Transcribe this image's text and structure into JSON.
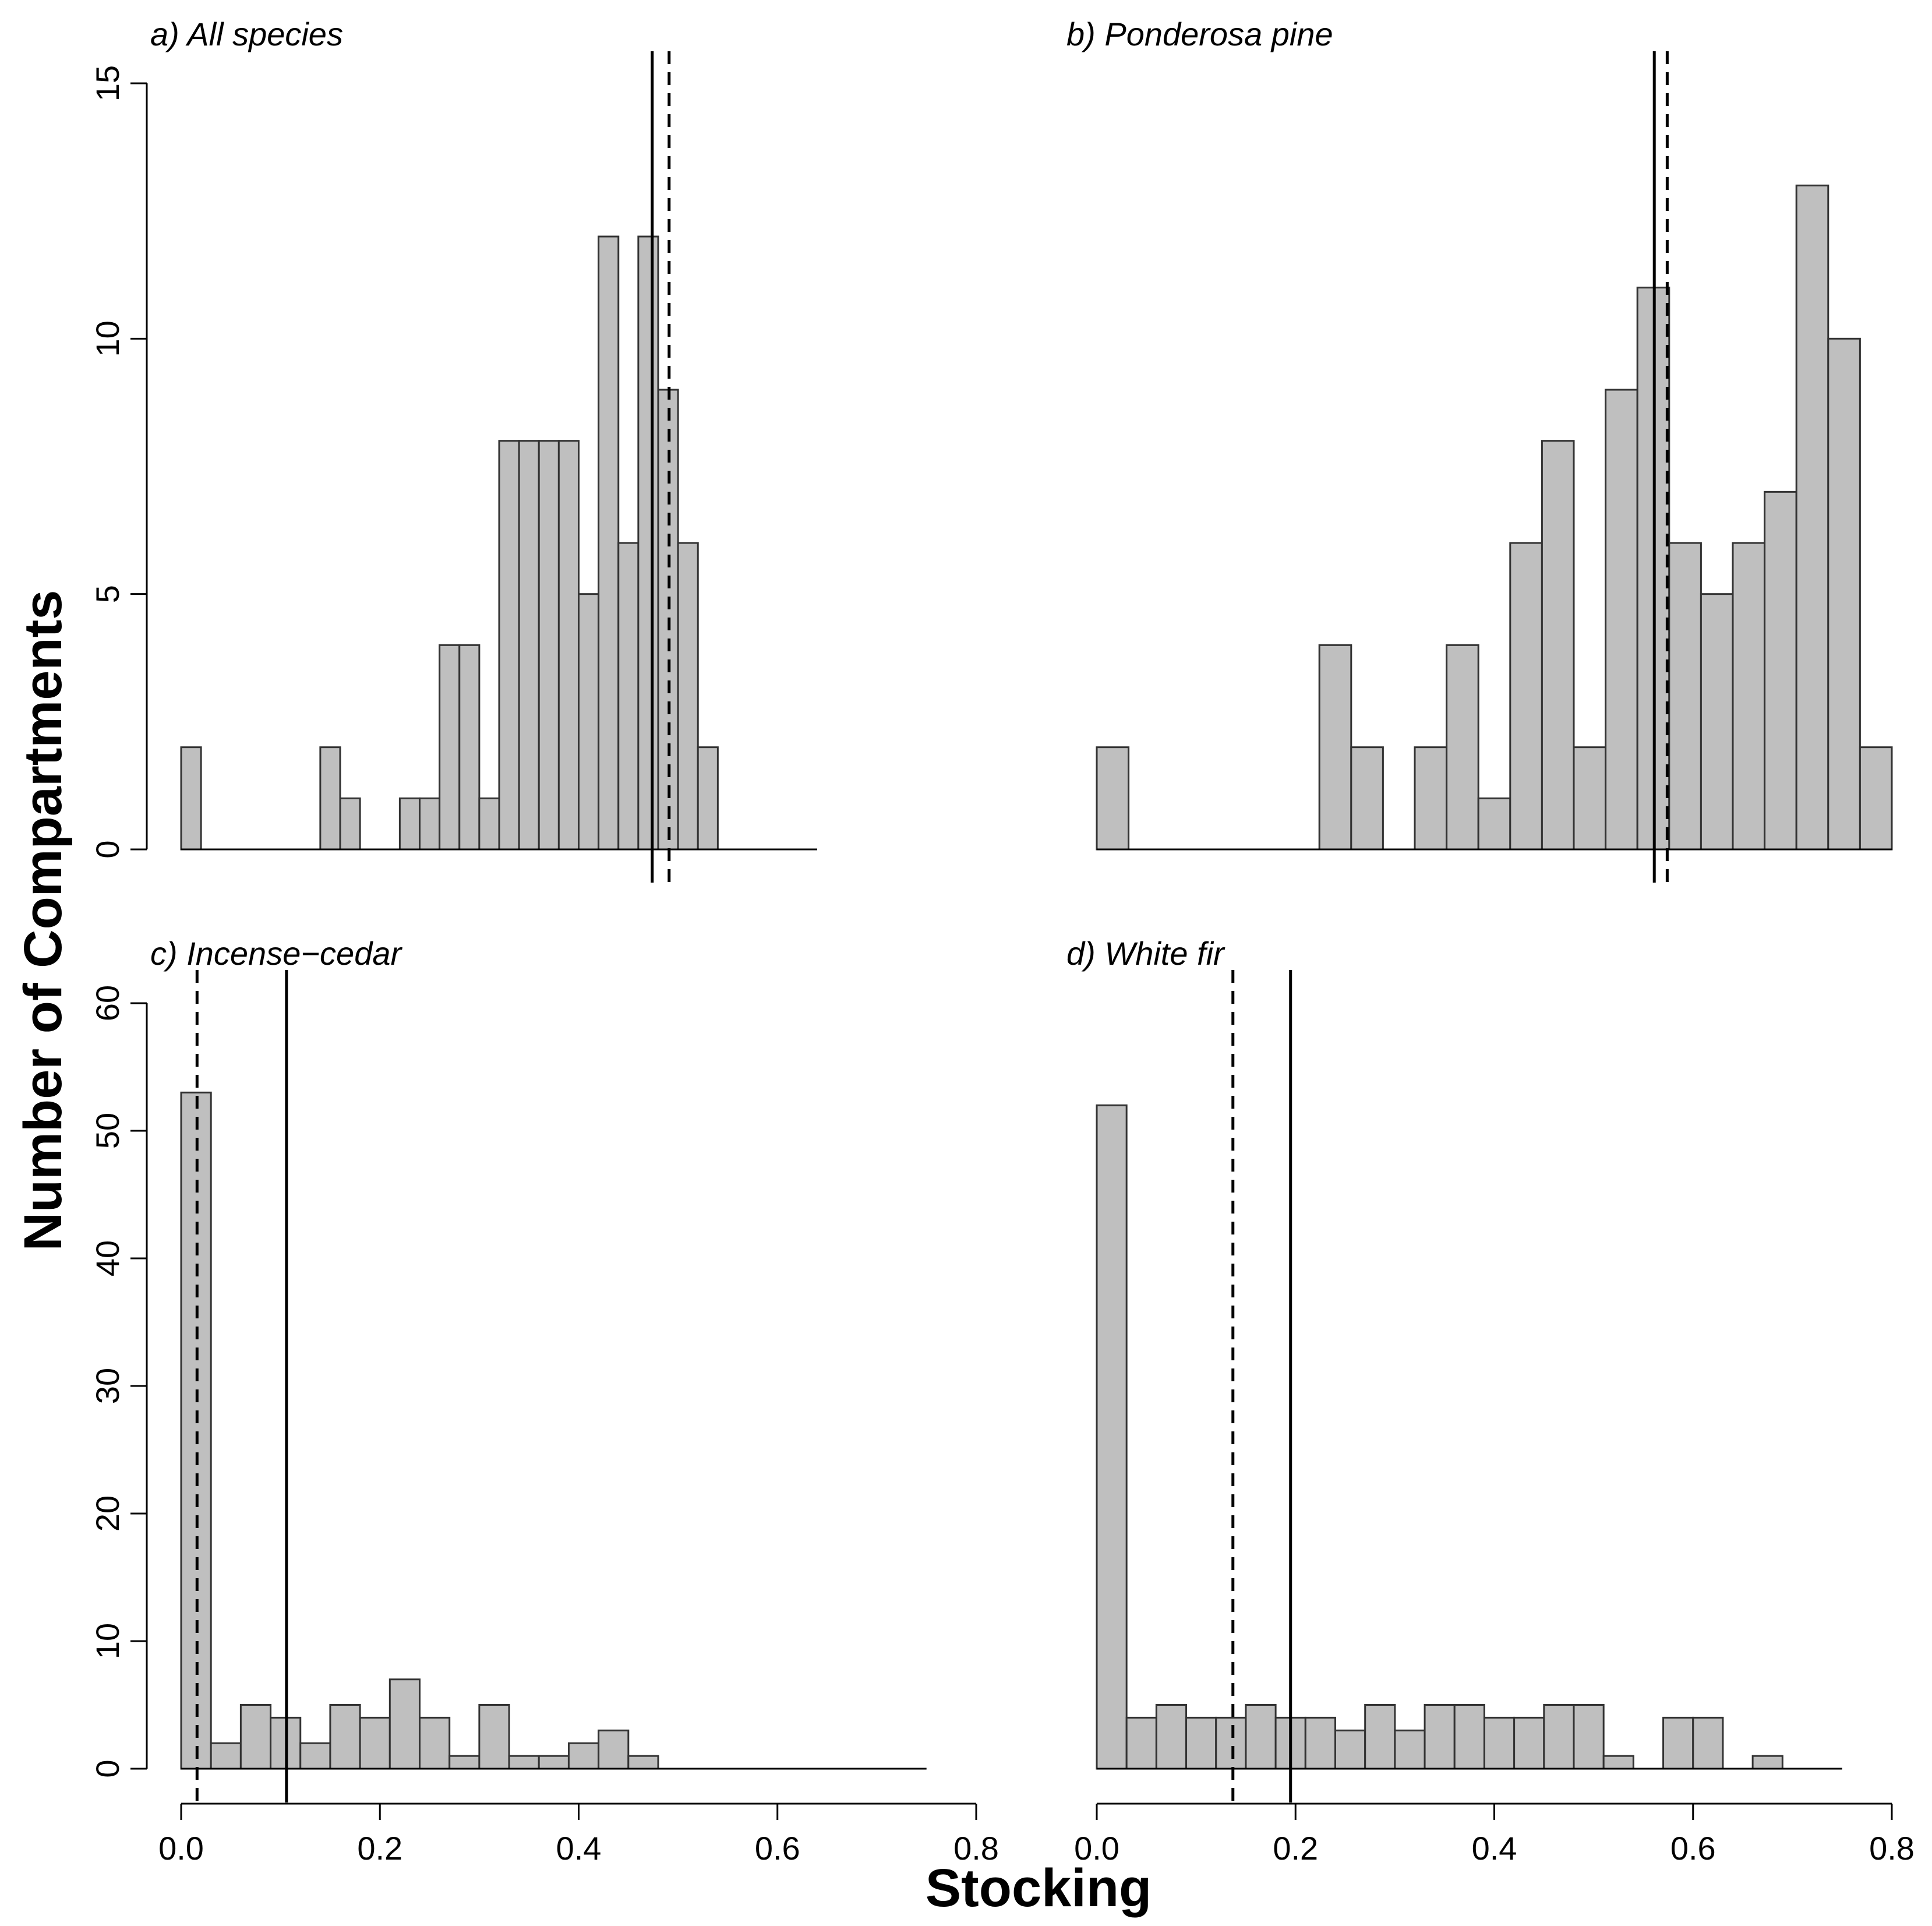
{
  "figure": {
    "ylabel": "Number of Compartments",
    "xlabel": "Stocking"
  },
  "colors": {
    "bar_fill": "#bfbfbf",
    "bar_stroke": "#333333",
    "lines": "#000000"
  },
  "chart_data": [
    {
      "type": "bar",
      "title": "a) All species",
      "bin_width": 0.02,
      "bin_start": 0.0,
      "values": [
        2,
        0,
        0,
        0,
        0,
        0,
        0,
        2,
        1,
        0,
        0,
        1,
        1,
        4,
        4,
        1,
        8,
        8,
        8,
        8,
        5,
        12,
        6,
        12,
        9,
        6,
        2,
        0,
        0,
        0,
        0,
        0
      ],
      "ylim": [
        0,
        15
      ],
      "yticks": [
        "0",
        "5",
        "10",
        "15"
      ],
      "xlim": [
        0,
        0.8
      ],
      "solid_line_x": 0.474,
      "dashed_line_x": 0.491,
      "xticks": []
    },
    {
      "type": "bar",
      "title": "b) Ponderosa pine",
      "bin_width": 0.032,
      "bin_start": 0.0,
      "values": [
        2,
        0,
        0,
        0,
        0,
        0,
        0,
        4,
        2,
        0,
        2,
        4,
        1,
        6,
        8,
        2,
        9,
        11,
        6,
        5,
        6,
        7,
        13,
        10,
        2
      ],
      "ylim": [
        0,
        15
      ],
      "yticks": [],
      "xlim": [
        0,
        0.8
      ],
      "solid_line_x": 0.561,
      "dashed_line_x": 0.574,
      "xticks": []
    },
    {
      "type": "bar",
      "title": "c) Incense−cedar",
      "bin_width": 0.03,
      "bin_start": 0.0,
      "values": [
        53,
        2,
        5,
        4,
        2,
        5,
        4,
        7,
        4,
        1,
        5,
        1,
        1,
        2,
        3,
        1,
        0,
        0,
        0,
        0,
        0,
        0,
        0,
        0,
        0
      ],
      "ylim": [
        0,
        60
      ],
      "yticks": [
        "0",
        "10",
        "20",
        "30",
        "40",
        "50",
        "60"
      ],
      "xlim": [
        0,
        0.8
      ],
      "solid_line_x": 0.106,
      "dashed_line_x": 0.016,
      "xticks": [
        "0.0",
        "0.2",
        "0.4",
        "0.6",
        "0.8"
      ]
    },
    {
      "type": "bar",
      "title": "d) White fir",
      "bin_width": 0.03,
      "bin_start": 0.0,
      "values": [
        52,
        4,
        5,
        4,
        4,
        5,
        4,
        4,
        3,
        5,
        3,
        5,
        5,
        4,
        4,
        5,
        5,
        1,
        0,
        4,
        4,
        0,
        1,
        0,
        0
      ],
      "ylim": [
        0,
        60
      ],
      "yticks": [],
      "xlim": [
        0,
        0.8
      ],
      "solid_line_x": 0.195,
      "dashed_line_x": 0.137,
      "xticks": [
        "0.0",
        "0.2",
        "0.4",
        "0.6",
        "0.8"
      ]
    }
  ]
}
